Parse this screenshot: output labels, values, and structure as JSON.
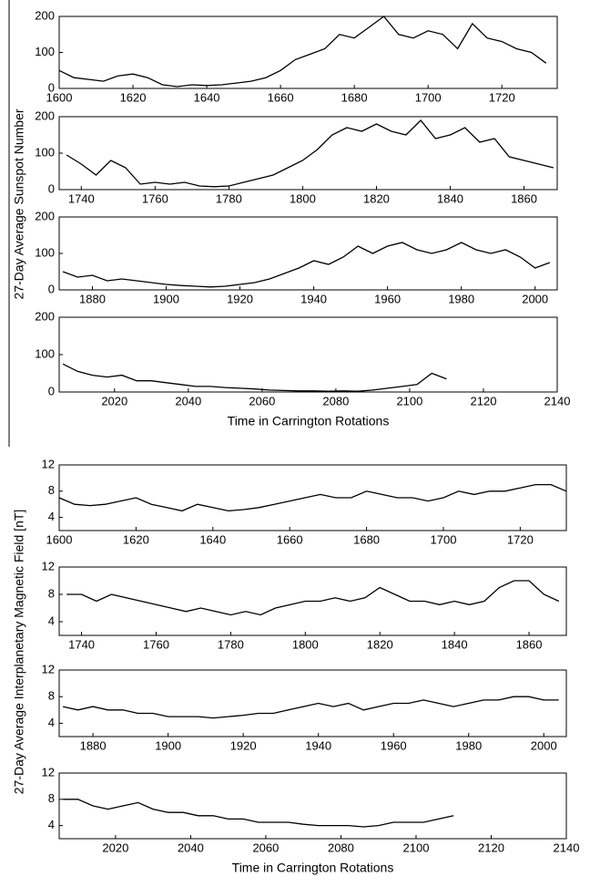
{
  "chart_data": [
    {
      "type": "line",
      "ylabel": "27-Day Average Sunspot Number",
      "color": "#000000",
      "x": [
        1600,
        1604,
        1608,
        1612,
        1616,
        1620,
        1624,
        1628,
        1632,
        1636,
        1640,
        1644,
        1648,
        1652,
        1656,
        1660,
        1664,
        1668,
        1672,
        1676,
        1680,
        1684,
        1688,
        1692,
        1696,
        1700,
        1704,
        1708,
        1712,
        1716,
        1720,
        1724,
        1728,
        1732
      ],
      "values": [
        50,
        30,
        25,
        20,
        35,
        40,
        30,
        10,
        5,
        10,
        8,
        10,
        15,
        20,
        30,
        50,
        80,
        95,
        110,
        150,
        140,
        170,
        200,
        150,
        140,
        160,
        150,
        110,
        180,
        140,
        130,
        110,
        100,
        70
      ],
      "xlim": [
        1600,
        1735
      ],
      "ylim": [
        0,
        200
      ],
      "xticks": [
        1600,
        1620,
        1640,
        1660,
        1680,
        1700,
        1720
      ],
      "yticks": [
        0,
        100,
        200
      ]
    },
    {
      "type": "line",
      "color": "#000000",
      "x": [
        1736,
        1740,
        1744,
        1748,
        1752,
        1756,
        1760,
        1764,
        1768,
        1772,
        1776,
        1780,
        1784,
        1788,
        1792,
        1796,
        1800,
        1804,
        1808,
        1812,
        1816,
        1820,
        1824,
        1828,
        1832,
        1836,
        1840,
        1844,
        1848,
        1852,
        1856,
        1860,
        1864,
        1868
      ],
      "values": [
        95,
        70,
        40,
        80,
        60,
        15,
        20,
        15,
        20,
        10,
        8,
        10,
        20,
        30,
        40,
        60,
        80,
        110,
        150,
        170,
        160,
        180,
        160,
        150,
        190,
        140,
        150,
        170,
        130,
        140,
        90,
        80,
        70,
        60
      ],
      "xlim": [
        1734,
        1869
      ],
      "ylim": [
        0,
        200
      ],
      "xticks": [
        1740,
        1760,
        1780,
        1800,
        1820,
        1840,
        1860
      ],
      "yticks": [
        0,
        100,
        200
      ]
    },
    {
      "type": "line",
      "color": "#000000",
      "x": [
        1872,
        1876,
        1880,
        1884,
        1888,
        1892,
        1896,
        1900,
        1904,
        1908,
        1912,
        1916,
        1920,
        1924,
        1928,
        1932,
        1936,
        1940,
        1944,
        1948,
        1952,
        1956,
        1960,
        1964,
        1968,
        1972,
        1976,
        1980,
        1984,
        1988,
        1992,
        1996,
        2000,
        2004
      ],
      "values": [
        50,
        35,
        40,
        25,
        30,
        25,
        20,
        15,
        12,
        10,
        8,
        10,
        15,
        20,
        30,
        45,
        60,
        80,
        70,
        90,
        120,
        100,
        120,
        130,
        110,
        100,
        110,
        130,
        110,
        100,
        110,
        90,
        60,
        75
      ],
      "xlim": [
        1871,
        2006
      ],
      "ylim": [
        0,
        200
      ],
      "xticks": [
        1880,
        1900,
        1920,
        1940,
        1960,
        1980,
        2000
      ],
      "yticks": [
        0,
        100,
        200
      ]
    },
    {
      "type": "line",
      "xlabel": "Time in Carrington Rotations",
      "color": "#000000",
      "x": [
        2006,
        2010,
        2014,
        2018,
        2022,
        2026,
        2030,
        2034,
        2038,
        2042,
        2046,
        2050,
        2054,
        2058,
        2062,
        2066,
        2070,
        2074,
        2078,
        2082,
        2086,
        2090,
        2094,
        2098,
        2102,
        2106,
        2110
      ],
      "values": [
        75,
        55,
        45,
        40,
        45,
        30,
        30,
        25,
        20,
        15,
        15,
        12,
        10,
        8,
        5,
        4,
        3,
        3,
        2,
        3,
        2,
        5,
        10,
        15,
        20,
        50,
        35
      ],
      "xlim": [
        2005,
        2140
      ],
      "ylim": [
        0,
        200
      ],
      "xticks": [
        2020,
        2040,
        2060,
        2080,
        2100,
        2120,
        2140
      ],
      "yticks": [
        0,
        100,
        200
      ]
    },
    {
      "type": "line",
      "ylabel": "27-Day Average Interplanetary Magnetic Field [nT]",
      "color": "#000000",
      "x": [
        1600,
        1604,
        1608,
        1612,
        1616,
        1620,
        1624,
        1628,
        1632,
        1636,
        1640,
        1644,
        1648,
        1652,
        1656,
        1660,
        1664,
        1668,
        1672,
        1676,
        1680,
        1684,
        1688,
        1692,
        1696,
        1700,
        1704,
        1708,
        1712,
        1716,
        1720,
        1724,
        1728,
        1732
      ],
      "values": [
        7,
        6,
        5.8,
        6,
        6.5,
        7,
        6,
        5.5,
        5,
        6,
        5.5,
        5,
        5.2,
        5.5,
        6,
        6.5,
        7,
        7.5,
        7,
        7,
        8,
        7.5,
        7,
        7,
        6.5,
        7,
        8,
        7.5,
        8,
        8,
        8.5,
        9,
        9,
        8
      ],
      "xlim": [
        1600,
        1732
      ],
      "ylim": [
        2,
        12
      ],
      "xticks": [
        1600,
        1620,
        1640,
        1660,
        1680,
        1700,
        1720
      ],
      "yticks": [
        4,
        8,
        12
      ]
    },
    {
      "type": "line",
      "color": "#000000",
      "x": [
        1736,
        1740,
        1744,
        1748,
        1752,
        1756,
        1760,
        1764,
        1768,
        1772,
        1776,
        1780,
        1784,
        1788,
        1792,
        1796,
        1800,
        1804,
        1808,
        1812,
        1816,
        1820,
        1824,
        1828,
        1832,
        1836,
        1840,
        1844,
        1848,
        1852,
        1856,
        1860,
        1864,
        1868
      ],
      "values": [
        8,
        8,
        7,
        8,
        7.5,
        7,
        6.5,
        6,
        5.5,
        6,
        5.5,
        5,
        5.5,
        5,
        6,
        6.5,
        7,
        7,
        7.5,
        7,
        7.5,
        9,
        8,
        7,
        7,
        6.5,
        7,
        6.5,
        7,
        9,
        10,
        10,
        8,
        7
      ],
      "xlim": [
        1734,
        1870
      ],
      "ylim": [
        2,
        12
      ],
      "xticks": [
        1740,
        1760,
        1780,
        1800,
        1820,
        1840,
        1860
      ],
      "yticks": [
        4,
        8,
        12
      ]
    },
    {
      "type": "line",
      "color": "#000000",
      "x": [
        1872,
        1876,
        1880,
        1884,
        1888,
        1892,
        1896,
        1900,
        1904,
        1908,
        1912,
        1916,
        1920,
        1924,
        1928,
        1932,
        1936,
        1940,
        1944,
        1948,
        1952,
        1956,
        1960,
        1964,
        1968,
        1972,
        1976,
        1980,
        1984,
        1988,
        1992,
        1996,
        2000,
        2004
      ],
      "values": [
        6.5,
        6,
        6.5,
        6,
        6,
        5.5,
        5.5,
        5,
        5,
        5,
        4.8,
        5,
        5.2,
        5.5,
        5.5,
        6,
        6.5,
        7,
        6.5,
        7,
        6,
        6.5,
        7,
        7,
        7.5,
        7,
        6.5,
        7,
        7.5,
        7.5,
        8,
        8,
        7.5,
        7.5
      ],
      "xlim": [
        1871,
        2006
      ],
      "ylim": [
        2,
        12
      ],
      "xticks": [
        1880,
        1900,
        1920,
        1940,
        1960,
        1980,
        2000
      ],
      "yticks": [
        4,
        8,
        12
      ]
    },
    {
      "type": "line",
      "xlabel": "Time in Carrington Rotations",
      "color": "#000000",
      "x": [
        2006,
        2010,
        2014,
        2018,
        2022,
        2026,
        2030,
        2034,
        2038,
        2042,
        2046,
        2050,
        2054,
        2058,
        2062,
        2066,
        2070,
        2074,
        2078,
        2082,
        2086,
        2090,
        2094,
        2098,
        2102,
        2106,
        2110
      ],
      "values": [
        8,
        8,
        7,
        6.5,
        7,
        7.5,
        6.5,
        6,
        6,
        5.5,
        5.5,
        5,
        5,
        4.5,
        4.5,
        4.5,
        4.2,
        4,
        4,
        4,
        3.8,
        4,
        4.5,
        4.5,
        4.5,
        5,
        5.5
      ],
      "xlim": [
        2005,
        2140
      ],
      "ylim": [
        2,
        12
      ],
      "xticks": [
        2020,
        2040,
        2060,
        2080,
        2100,
        2120,
        2140
      ],
      "yticks": [
        4,
        8,
        12
      ]
    }
  ]
}
